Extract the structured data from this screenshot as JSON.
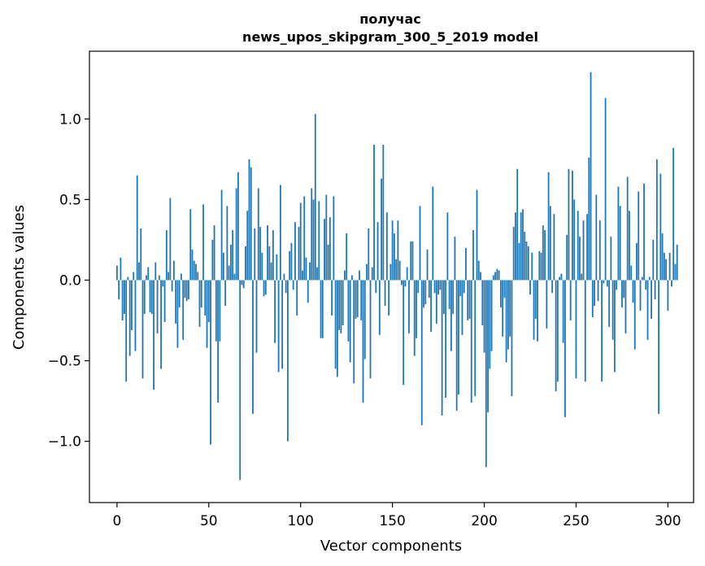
{
  "chart_data": {
    "type": "bar",
    "title_line1": "получас",
    "title_line2": "news_upos_skipgram_300_5_2019 model",
    "xlabel": "Vector components",
    "ylabel": "Components values",
    "xlim": [
      -15,
      314
    ],
    "ylim": [
      -1.38,
      1.42
    ],
    "xticks": [
      0,
      50,
      100,
      150,
      200,
      250,
      300
    ],
    "xtick_labels": [
      "0",
      "50",
      "100",
      "150",
      "200",
      "250",
      "300"
    ],
    "yticks": [
      -1.0,
      -0.5,
      0.0,
      0.5,
      1.0
    ],
    "ytick_labels": [
      "−1.0",
      "−0.5",
      "0.0",
      "0.5",
      "1.0"
    ],
    "bar_color": "#1f77b4",
    "values": [
      0.09,
      -0.12,
      0.14,
      -0.25,
      -0.21,
      -0.63,
      0.02,
      -0.47,
      -0.31,
      0.05,
      -0.44,
      0.65,
      0.11,
      0.32,
      -0.61,
      -0.21,
      0.03,
      0.08,
      -0.2,
      -0.21,
      -0.68,
      0.11,
      -0.33,
      0.03,
      -0.55,
      -0.04,
      -0.26,
      0.31,
      0.05,
      0.51,
      -0.07,
      0.12,
      -0.27,
      -0.42,
      -0.17,
      0.04,
      -0.37,
      -0.11,
      -0.13,
      -0.12,
      0.44,
      0.19,
      0.12,
      0.1,
      0.05,
      -0.29,
      -0.17,
      0.47,
      -0.22,
      -0.42,
      -0.26,
      -1.02,
      0.25,
      0.34,
      -0.38,
      -0.76,
      -0.38,
      0.56,
      0.17,
      -0.16,
      0.46,
      0.09,
      0.22,
      0.31,
      0.04,
      0.57,
      0.67,
      -1.24,
      -0.03,
      -0.05,
      0.21,
      0.43,
      0.75,
      0.7,
      -0.83,
      0.32,
      -0.45,
      0.57,
      0.33,
      0.17,
      -0.1,
      -0.09,
      0.34,
      0.21,
      0.11,
      0.31,
      -0.39,
      0.16,
      -0.57,
      0.59,
      -0.55,
      0.04,
      -0.08,
      -1.0,
      0.18,
      0.23,
      -0.06,
      0.36,
      -0.22,
      0.33,
      0.48,
      0.06,
      0.52,
      0.14,
      -0.14,
      0.11,
      0.57,
      0.5,
      1.03,
      0.08,
      0.49,
      -0.36,
      -0.36,
      0.38,
      0.53,
      0.22,
      0.39,
      -0.22,
      0.52,
      -0.55,
      -0.6,
      -0.31,
      -0.33,
      -0.28,
      0.06,
      0.29,
      -0.38,
      -0.51,
      0.03,
      -0.64,
      -0.24,
      -0.23,
      0.06,
      -0.25,
      -0.76,
      -0.49,
      0.1,
      0.32,
      -0.61,
      0.08,
      0.84,
      -0.08,
      0.36,
      -0.34,
      0.63,
      0.84,
      -0.16,
      0.42,
      -0.22,
      0.1,
      0.37,
      0.29,
      0.13,
      0.37,
      0.12,
      -0.03,
      -0.65,
      -0.04,
      0.08,
      -0.33,
      0.24,
      0.24,
      -0.47,
      -0.36,
      -0.08,
      0.46,
      -0.9,
      -0.17,
      -0.15,
      0.19,
      -0.11,
      -0.32,
      0.58,
      -0.08,
      -0.27,
      -0.09,
      -0.06,
      -0.84,
      -0.21,
      -0.73,
      0.42,
      -0.18,
      -0.44,
      -0.21,
      0.27,
      -0.81,
      -0.71,
      -0.1,
      -0.34,
      -0.08,
      0.2,
      -0.25,
      -0.24,
      -0.76,
      0.31,
      -0.72,
      0.56,
      0.12,
      0.05,
      -0.28,
      -0.45,
      -1.16,
      -0.82,
      -0.55,
      -0.44,
      0.03,
      0.05,
      0.07,
      0.06,
      -0.17,
      -0.35,
      -0.11,
      -0.51,
      -0.43,
      -0.35,
      -0.72,
      0.33,
      0.42,
      0.69,
      0.23,
      0.42,
      0.44,
      0.3,
      0.24,
      0.21,
      -0.09,
      0.17,
      -0.37,
      -0.24,
      -0.38,
      0.18,
      0.17,
      0.34,
      0.31,
      -0.3,
      0.67,
      0.46,
      -0.08,
      0.41,
      -0.69,
      -0.63,
      0.02,
      0.04,
      -0.39,
      -0.85,
      0.28,
      0.69,
      -0.25,
      0.68,
      0.5,
      -0.61,
      0.43,
      0.27,
      0.04,
      0.37,
      -0.63,
      0.41,
      0.76,
      1.29,
      -0.23,
      -0.16,
      0.53,
      -0.13,
      0.37,
      -0.63,
      -0.02,
      1.13,
      -0.04,
      -0.29,
      0.27,
      -0.37,
      -0.57,
      -0.06,
      0.58,
      0.46,
      -0.17,
      -0.11,
      -0.33,
      0.64,
      0.43,
      0.09,
      -0.14,
      -0.43,
      0.23,
      0.55,
      -0.19,
      0.02,
      0.6,
      -0.06,
      -0.37,
      0.02,
      -0.24,
      0.25,
      -0.12,
      0.75,
      -0.83,
      0.66,
      0.29,
      0.17,
      0.13,
      -0.19,
      0.17,
      -0.04,
      0.82,
      0.1,
      0.22
    ]
  }
}
